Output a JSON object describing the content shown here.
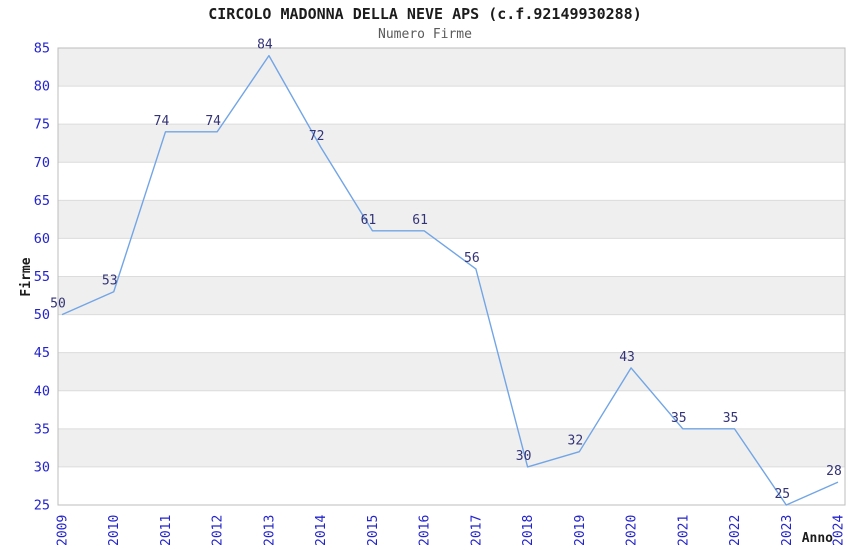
{
  "title": "CIRCOLO MADONNA DELLA NEVE APS (c.f.92149930288)",
  "subtitle": "Numero Firme",
  "chart_data": {
    "type": "line",
    "title": "CIRCOLO MADONNA DELLA NEVE APS (c.f.92149930288)",
    "subtitle": "Numero Firme",
    "xlabel": "Anno",
    "ylabel": "Firme",
    "x": [
      2009,
      2010,
      2011,
      2012,
      2013,
      2014,
      2015,
      2016,
      2017,
      2018,
      2019,
      2020,
      2021,
      2022,
      2023,
      2024
    ],
    "values": [
      50,
      53,
      74,
      74,
      84,
      72,
      61,
      61,
      56,
      30,
      32,
      43,
      35,
      35,
      25,
      28
    ],
    "ylim": [
      25,
      85
    ],
    "ytick_step": 5,
    "yticks": [
      25,
      30,
      35,
      40,
      45,
      50,
      55,
      60,
      65,
      70,
      75,
      80,
      85
    ],
    "grid": "horizontal-bands-alternating",
    "legend": "none",
    "colors": {
      "line": "#72a5e6",
      "tick_labels": "#2323ce",
      "data_labels": "#333377",
      "band_shaded": "#efefef",
      "band_plain": "#ffffff",
      "gridline": "#dcdcdc",
      "frame": "#bdbdbd",
      "axis_titles": "#1c1c1c",
      "title": "#1c1c1c",
      "subtitle": "#5a5a5a"
    }
  }
}
